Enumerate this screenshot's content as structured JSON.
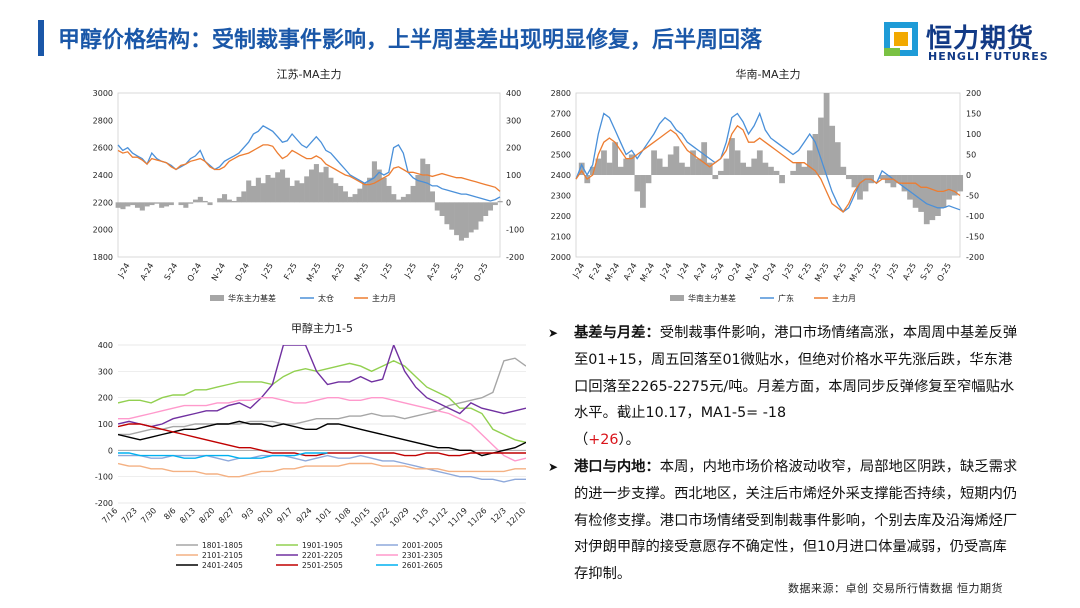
{
  "page": {
    "title": "甲醇价格结构：受制裁事件影响，上半周基差出现明显修复，后半周回落",
    "logo_cn": "恒力期货",
    "logo_en": "HENGLI FUTURES",
    "accent_color": "#1a57a8",
    "source": "数据来源：卓创  交易所行情数据  恒力期货"
  },
  "bullets": [
    {
      "head": "基差与月差：",
      "text": "受制裁事件影响，港口市场情绪高涨，本周周中基差反弹至01+15，周五回落至01微贴水，但绝对价格水平先涨后跌，华东港口回落至2265-2275元/吨。月差方面，本周同步反弹修复至窄幅贴水水平。截止10.17，MA1-5= -18",
      "paren_open": "（",
      "highlight": "+26",
      "paren_close": "）。"
    },
    {
      "head": "港口与内地：",
      "text": "本周，内地市场价格波动收窄，局部地区阴跌，缺乏需求的进一步支撑。西北地区，关注后市烯烃外采支撑能否持续，短期内仍有检修支撑。港口市场情绪受到制裁事件影响，个别去库及沿海烯烃厂对伊朗甲醇的接受意愿存不确定性，但10月进口体量减弱，仍受高库存抑制。"
    }
  ],
  "chart_data": [
    {
      "type": "line",
      "title": "江苏-MA主力",
      "x_ticks": [
        "J-24",
        "A-24",
        "S-24",
        "O-24",
        "N-24",
        "D-24",
        "J-25",
        "F-25",
        "M-25",
        "A-25",
        "M-25",
        "J-25",
        "J-25",
        "A-25",
        "S-25",
        "O-25"
      ],
      "ylim": [
        1800,
        3000
      ],
      "y_ticks": [
        1800,
        2000,
        2200,
        2400,
        2600,
        2800,
        3000
      ],
      "y2lim": [
        -200,
        400
      ],
      "y2_ticks": [
        -200,
        -100,
        0,
        100,
        200,
        300,
        400
      ],
      "series": [
        {
          "name": "华东主力基差",
          "kind": "area",
          "axis": "right",
          "color": "#a6a6a6",
          "values": [
            -20,
            -25,
            -15,
            -10,
            -20,
            -30,
            -15,
            -10,
            -5,
            -20,
            -15,
            -10,
            0,
            -10,
            -20,
            -5,
            10,
            20,
            5,
            -10,
            0,
            15,
            30,
            10,
            5,
            20,
            40,
            80,
            60,
            90,
            70,
            100,
            90,
            110,
            120,
            90,
            60,
            80,
            70,
            95,
            120,
            140,
            110,
            130,
            90,
            70,
            60,
            40,
            20,
            30,
            50,
            70,
            90,
            150,
            120,
            90,
            60,
            30,
            10,
            20,
            30,
            60,
            100,
            160,
            140,
            40,
            -30,
            -50,
            -80,
            -100,
            -120,
            -140,
            -130,
            -110,
            -100,
            -70,
            -50,
            -30,
            -10,
            5
          ]
        },
        {
          "name": "太仓",
          "kind": "line",
          "axis": "left",
          "color": "#4a90d9",
          "values": [
            2620,
            2580,
            2600,
            2560,
            2540,
            2520,
            2480,
            2560,
            2520,
            2500,
            2490,
            2470,
            2440,
            2460,
            2480,
            2520,
            2540,
            2580,
            2500,
            2470,
            2440,
            2460,
            2500,
            2520,
            2540,
            2560,
            2600,
            2640,
            2700,
            2720,
            2760,
            2740,
            2720,
            2680,
            2640,
            2650,
            2700,
            2660,
            2620,
            2600,
            2640,
            2680,
            2640,
            2580,
            2560,
            2520,
            2480,
            2440,
            2400,
            2380,
            2360,
            2340,
            2360,
            2380,
            2420,
            2400,
            2420,
            2600,
            2620,
            2560,
            2420,
            2380,
            2360,
            2350,
            2340,
            2320,
            2320,
            2300,
            2290,
            2280,
            2270,
            2260,
            2260,
            2250,
            2240,
            2230,
            2220,
            2210,
            2220,
            2240
          ]
        },
        {
          "name": "主力月",
          "kind": "line",
          "axis": "left",
          "color": "#ed7d31",
          "values": [
            2580,
            2560,
            2570,
            2530,
            2530,
            2510,
            2480,
            2520,
            2510,
            2500,
            2490,
            2460,
            2440,
            2470,
            2480,
            2500,
            2510,
            2520,
            2500,
            2460,
            2440,
            2440,
            2460,
            2500,
            2520,
            2540,
            2550,
            2560,
            2580,
            2600,
            2620,
            2620,
            2610,
            2560,
            2520,
            2540,
            2580,
            2560,
            2540,
            2520,
            2520,
            2540,
            2520,
            2480,
            2460,
            2440,
            2420,
            2400,
            2390,
            2370,
            2350,
            2330,
            2330,
            2340,
            2360,
            2380,
            2400,
            2450,
            2460,
            2440,
            2420,
            2420,
            2410,
            2400,
            2400,
            2390,
            2400,
            2410,
            2400,
            2390,
            2380,
            2380,
            2370,
            2360,
            2350,
            2340,
            2330,
            2320,
            2310,
            2280
          ]
        }
      ]
    },
    {
      "type": "line",
      "title": "华南-MA主力",
      "x_ticks": [
        "J-24",
        "F-24",
        "M-24",
        "A-24",
        "M-24",
        "J-24",
        "J-24",
        "A-24",
        "S-24",
        "O-24",
        "N-24",
        "D-24",
        "J-25",
        "F-25",
        "M-25",
        "A-25",
        "M-25",
        "J-25",
        "J-25",
        "A-25",
        "S-25",
        "O-25"
      ],
      "ylim": [
        2000,
        2800
      ],
      "y_ticks": [
        2000,
        2100,
        2200,
        2300,
        2400,
        2500,
        2600,
        2700,
        2800
      ],
      "y2lim": [
        -200,
        200
      ],
      "y2_ticks": [
        -200,
        -150,
        -100,
        -50,
        0,
        50,
        100,
        150,
        200
      ],
      "series": [
        {
          "name": "华南主力基差",
          "kind": "area",
          "axis": "right",
          "color": "#a6a6a6",
          "values": [
            0,
            30,
            -20,
            20,
            40,
            60,
            30,
            80,
            20,
            40,
            50,
            -40,
            -80,
            -20,
            60,
            40,
            20,
            50,
            70,
            30,
            20,
            60,
            40,
            80,
            30,
            -10,
            10,
            40,
            90,
            60,
            30,
            20,
            40,
            60,
            30,
            20,
            10,
            -20,
            0,
            10,
            30,
            20,
            60,
            100,
            140,
            200,
            120,
            80,
            20,
            -10,
            -30,
            -60,
            -40,
            -20,
            0,
            -10,
            -20,
            -30,
            -20,
            -40,
            -60,
            -80,
            -90,
            -120,
            -110,
            -100,
            -80,
            -60,
            -50,
            -40
          ]
        },
        {
          "name": "广东",
          "kind": "line",
          "axis": "left",
          "color": "#4a90d9",
          "values": [
            2380,
            2450,
            2400,
            2450,
            2600,
            2700,
            2680,
            2620,
            2560,
            2500,
            2520,
            2480,
            2520,
            2560,
            2600,
            2650,
            2680,
            2660,
            2620,
            2600,
            2560,
            2540,
            2520,
            2500,
            2480,
            2460,
            2480,
            2560,
            2680,
            2700,
            2660,
            2600,
            2640,
            2700,
            2620,
            2580,
            2560,
            2540,
            2520,
            2500,
            2520,
            2560,
            2600,
            2560,
            2480,
            2400,
            2320,
            2260,
            2220,
            2240,
            2300,
            2360,
            2380,
            2380,
            2360,
            2420,
            2400,
            2380,
            2360,
            2340,
            2320,
            2300,
            2280,
            2260,
            2250,
            2240,
            2240,
            2250,
            2240,
            2230
          ]
        },
        {
          "name": "主力月",
          "kind": "line",
          "axis": "left",
          "color": "#ed7d31",
          "values": [
            2380,
            2420,
            2380,
            2400,
            2500,
            2560,
            2580,
            2560,
            2520,
            2480,
            2480,
            2500,
            2520,
            2540,
            2560,
            2580,
            2600,
            2620,
            2600,
            2560,
            2520,
            2500,
            2480,
            2460,
            2440,
            2460,
            2480,
            2520,
            2600,
            2640,
            2620,
            2560,
            2560,
            2580,
            2560,
            2540,
            2520,
            2500,
            2480,
            2460,
            2460,
            2460,
            2440,
            2420,
            2380,
            2320,
            2260,
            2240,
            2220,
            2260,
            2320,
            2360,
            2380,
            2380,
            2360,
            2380,
            2380,
            2380,
            2360,
            2360,
            2360,
            2360,
            2340,
            2340,
            2330,
            2320,
            2320,
            2330,
            2320,
            2300
          ]
        }
      ]
    },
    {
      "type": "line",
      "title": "甲醇主力1-5",
      "x_ticks": [
        "7/16",
        "7/23",
        "7/30",
        "8/6",
        "8/13",
        "8/20",
        "8/27",
        "9/3",
        "9/10",
        "9/17",
        "9/24",
        "10/1",
        "10/8",
        "10/15",
        "10/22",
        "10/29",
        "11/5",
        "11/12",
        "11/19",
        "11/26",
        "12/3",
        "12/10"
      ],
      "ylim": [
        -200,
        400
      ],
      "y_ticks": [
        -200,
        -100,
        0,
        100,
        200,
        300,
        400
      ],
      "legend": [
        "1801-1805",
        "1901-1905",
        "2001-2005",
        "2101-2105",
        "2201-2205",
        "2301-2305",
        "2401-2405",
        "2501-2505",
        "2601-2605"
      ],
      "series": [
        {
          "name": "1801-1805",
          "color": "#a6a6a6",
          "values": [
            60,
            60,
            70,
            80,
            80,
            90,
            90,
            100,
            100,
            100,
            100,
            100,
            110,
            110,
            110,
            100,
            100,
            110,
            120,
            120,
            120,
            130,
            130,
            140,
            130,
            130,
            120,
            130,
            140,
            150,
            170,
            180,
            190,
            200,
            220,
            340,
            350,
            320
          ]
        },
        {
          "name": "1901-1905",
          "color": "#92d050",
          "values": [
            180,
            190,
            190,
            180,
            200,
            210,
            210,
            230,
            230,
            240,
            250,
            260,
            260,
            260,
            250,
            280,
            300,
            310,
            300,
            310,
            320,
            330,
            320,
            300,
            320,
            340,
            320,
            280,
            240,
            220,
            200,
            160,
            160,
            140,
            80,
            60,
            40,
            30
          ]
        },
        {
          "name": "2001-2005",
          "color": "#8ea9db",
          "values": [
            -20,
            -20,
            -20,
            -30,
            -30,
            -20,
            -20,
            -20,
            -20,
            -30,
            -40,
            -30,
            -30,
            -20,
            -20,
            -20,
            -30,
            -40,
            -30,
            -20,
            -30,
            -30,
            -20,
            -30,
            -40,
            -40,
            -50,
            -60,
            -70,
            -80,
            -90,
            -100,
            -100,
            -110,
            -110,
            -120,
            -110,
            -110
          ]
        },
        {
          "name": "2101-2105",
          "color": "#f4b183",
          "values": [
            -50,
            -60,
            -60,
            -70,
            -70,
            -80,
            -80,
            -80,
            -90,
            -90,
            -100,
            -100,
            -90,
            -80,
            -80,
            -70,
            -70,
            -60,
            -60,
            -60,
            -60,
            -50,
            -50,
            -50,
            -60,
            -60,
            -60,
            -70,
            -70,
            -70,
            -80,
            -80,
            -80,
            -80,
            -80,
            -80,
            -70,
            -70
          ]
        },
        {
          "name": "2201-2205",
          "color": "#7030a0",
          "values": [
            100,
            110,
            100,
            90,
            100,
            120,
            130,
            140,
            150,
            150,
            170,
            180,
            160,
            200,
            250,
            400,
            400,
            400,
            300,
            250,
            260,
            260,
            280,
            260,
            270,
            400,
            300,
            240,
            200,
            180,
            160,
            140,
            180,
            160,
            150,
            140,
            150,
            160
          ]
        },
        {
          "name": "2301-2305",
          "color": "#ff99cc",
          "values": [
            120,
            120,
            130,
            140,
            150,
            160,
            170,
            170,
            170,
            180,
            180,
            190,
            190,
            200,
            200,
            190,
            180,
            180,
            190,
            200,
            200,
            190,
            190,
            200,
            200,
            190,
            180,
            170,
            160,
            150,
            140,
            120,
            100,
            60,
            20,
            -20,
            -40,
            -30
          ]
        },
        {
          "name": "2401-2405",
          "color": "#000000",
          "values": [
            60,
            50,
            40,
            50,
            60,
            70,
            80,
            80,
            90,
            100,
            100,
            110,
            100,
            100,
            90,
            100,
            90,
            80,
            80,
            100,
            100,
            90,
            80,
            70,
            60,
            50,
            40,
            30,
            20,
            10,
            10,
            0,
            0,
            -20,
            -10,
            0,
            10,
            30
          ]
        },
        {
          "name": "2501-2505",
          "color": "#c00000",
          "values": [
            90,
            100,
            100,
            90,
            80,
            70,
            60,
            50,
            40,
            30,
            20,
            10,
            10,
            0,
            -10,
            -10,
            -10,
            -20,
            -20,
            -10,
            -10,
            -10,
            -10,
            -10,
            -10,
            -10,
            -20,
            -20,
            -10,
            -10,
            -20,
            -20,
            -10,
            -10,
            -10,
            -10,
            -10,
            -10
          ]
        },
        {
          "name": "2601-2605",
          "color": "#00b0f0",
          "values": [
            -10,
            -10,
            -20,
            -20,
            -20,
            -20,
            -30,
            -30,
            -20,
            -20,
            -20,
            -30,
            -30,
            -30,
            -20,
            -20,
            -20,
            -10,
            -10,
            -10
          ]
        }
      ]
    }
  ]
}
